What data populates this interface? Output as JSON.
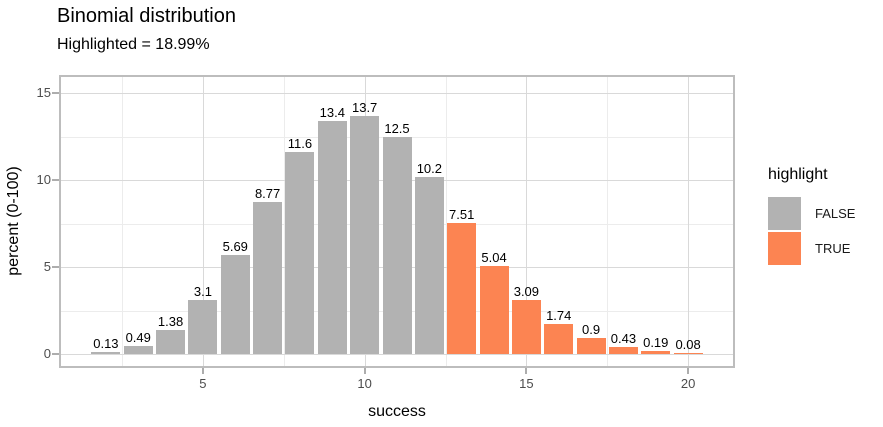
{
  "title": "Binomial distribution",
  "subtitle": "Highlighted = 18.99%",
  "x_axis": {
    "title": "success"
  },
  "y_axis": {
    "title": "percent (0-100)"
  },
  "legend": {
    "title": "highlight",
    "items": [
      {
        "label": "FALSE",
        "color": "#b2b2b2"
      },
      {
        "label": "TRUE",
        "color": "#fc8452"
      }
    ]
  },
  "chart_data": {
    "type": "bar",
    "title": "Binomial distribution",
    "subtitle": "Highlighted = 18.99%",
    "xlabel": "success",
    "ylabel": "percent (0-100)",
    "x": [
      2,
      3,
      4,
      5,
      6,
      7,
      8,
      9,
      10,
      11,
      12,
      13,
      14,
      15,
      16,
      17,
      18,
      19,
      20
    ],
    "values": [
      0.13,
      0.49,
      1.38,
      3.1,
      5.69,
      8.77,
      11.6,
      13.4,
      13.7,
      12.5,
      10.2,
      7.51,
      5.04,
      3.09,
      1.74,
      0.9,
      0.43,
      0.19,
      0.08
    ],
    "bar_labels": [
      "0.13",
      "0.49",
      "1.38",
      "3.1",
      "5.69",
      "8.77",
      "11.6",
      "13.4",
      "13.7",
      "12.5",
      "10.2",
      "7.51",
      "5.04",
      "3.09",
      "1.74",
      "0.9",
      "0.43",
      "0.19",
      "0.08"
    ],
    "highlight": [
      false,
      false,
      false,
      false,
      false,
      false,
      false,
      false,
      false,
      false,
      false,
      true,
      true,
      true,
      true,
      true,
      true,
      true,
      true
    ],
    "highlighted_total_percent": 18.99,
    "colors": {
      "false_fill": "#b2b2b2",
      "true_fill": "#fc8452"
    },
    "x_breaks": [
      5,
      10,
      15,
      20
    ],
    "x_minor": [
      2.5,
      7.5,
      12.5,
      17.5
    ],
    "y_breaks": [
      0,
      5,
      10,
      15
    ],
    "y_minor": [
      2.5,
      7.5,
      12.5
    ],
    "xlim": [
      0.55,
      21.45
    ],
    "ylim": [
      -0.8,
      16.05
    ],
    "grid": true,
    "legend_position": "right",
    "legend_title": "highlight",
    "legend_entries": [
      "FALSE",
      "TRUE"
    ]
  }
}
